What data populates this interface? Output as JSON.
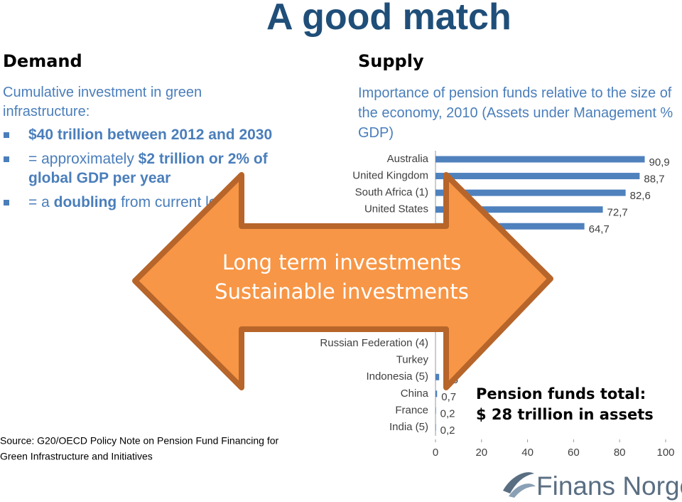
{
  "title": "A good match",
  "demand": {
    "heading": "Demand",
    "intro": "Cumulative investment in green infrastructure:",
    "bullets": [
      [
        {
          "text": "$40 trillion between 2012 and 2030",
          "bold": true
        }
      ],
      [
        {
          "text": "= approximately ",
          "bold": false
        },
        {
          "text": "$2 trillion or 2% of global GDP per year",
          "bold": true
        }
      ],
      [
        {
          "text": "= a ",
          "bold": false
        },
        {
          "text": "doubling",
          "bold": true
        },
        {
          "text": " from current levels",
          "bold": false
        }
      ]
    ]
  },
  "supply": {
    "heading": "Supply",
    "intro": "Importance of pension funds relative to the size of the economy, 2010 (Assets under Management % GDP)"
  },
  "chart_data": {
    "type": "hbar",
    "categories": [
      "Australia",
      "United Kingdom",
      "South Africa (1)",
      "United States",
      null,
      null,
      null,
      null,
      null,
      null,
      null,
      "Russian Federation (4)",
      "Turkey",
      "Indonesia (5)",
      "China",
      "France",
      "India (5)"
    ],
    "values": [
      90.9,
      88.7,
      82.6,
      72.7,
      64.7,
      null,
      null,
      null,
      null,
      null,
      null,
      null,
      null,
      1.6,
      0.7,
      0.2,
      0.2
    ],
    "value_labels": [
      "90,9",
      "88,7",
      "82,6",
      "72,7",
      "64,7",
      null,
      null,
      null,
      null,
      null,
      null,
      null,
      null,
      "1,6",
      "0,7",
      "0,2",
      "0,2"
    ],
    "color": "#4f81bd",
    "xlim": [
      0,
      100
    ],
    "xticks": [
      0,
      20,
      40,
      60,
      80,
      100
    ]
  },
  "arrow": {
    "lines": [
      "Long term investments",
      "Sustainable investments"
    ]
  },
  "callout": {
    "lines": [
      "Pension funds total:",
      "$ 28 trillion in assets"
    ]
  },
  "source": {
    "lines": [
      "Source: G20/OECD Policy Note on Pension Fund Financing for",
      "Green Infrastructure and Initiatives"
    ]
  },
  "logo": "Finans Norge"
}
